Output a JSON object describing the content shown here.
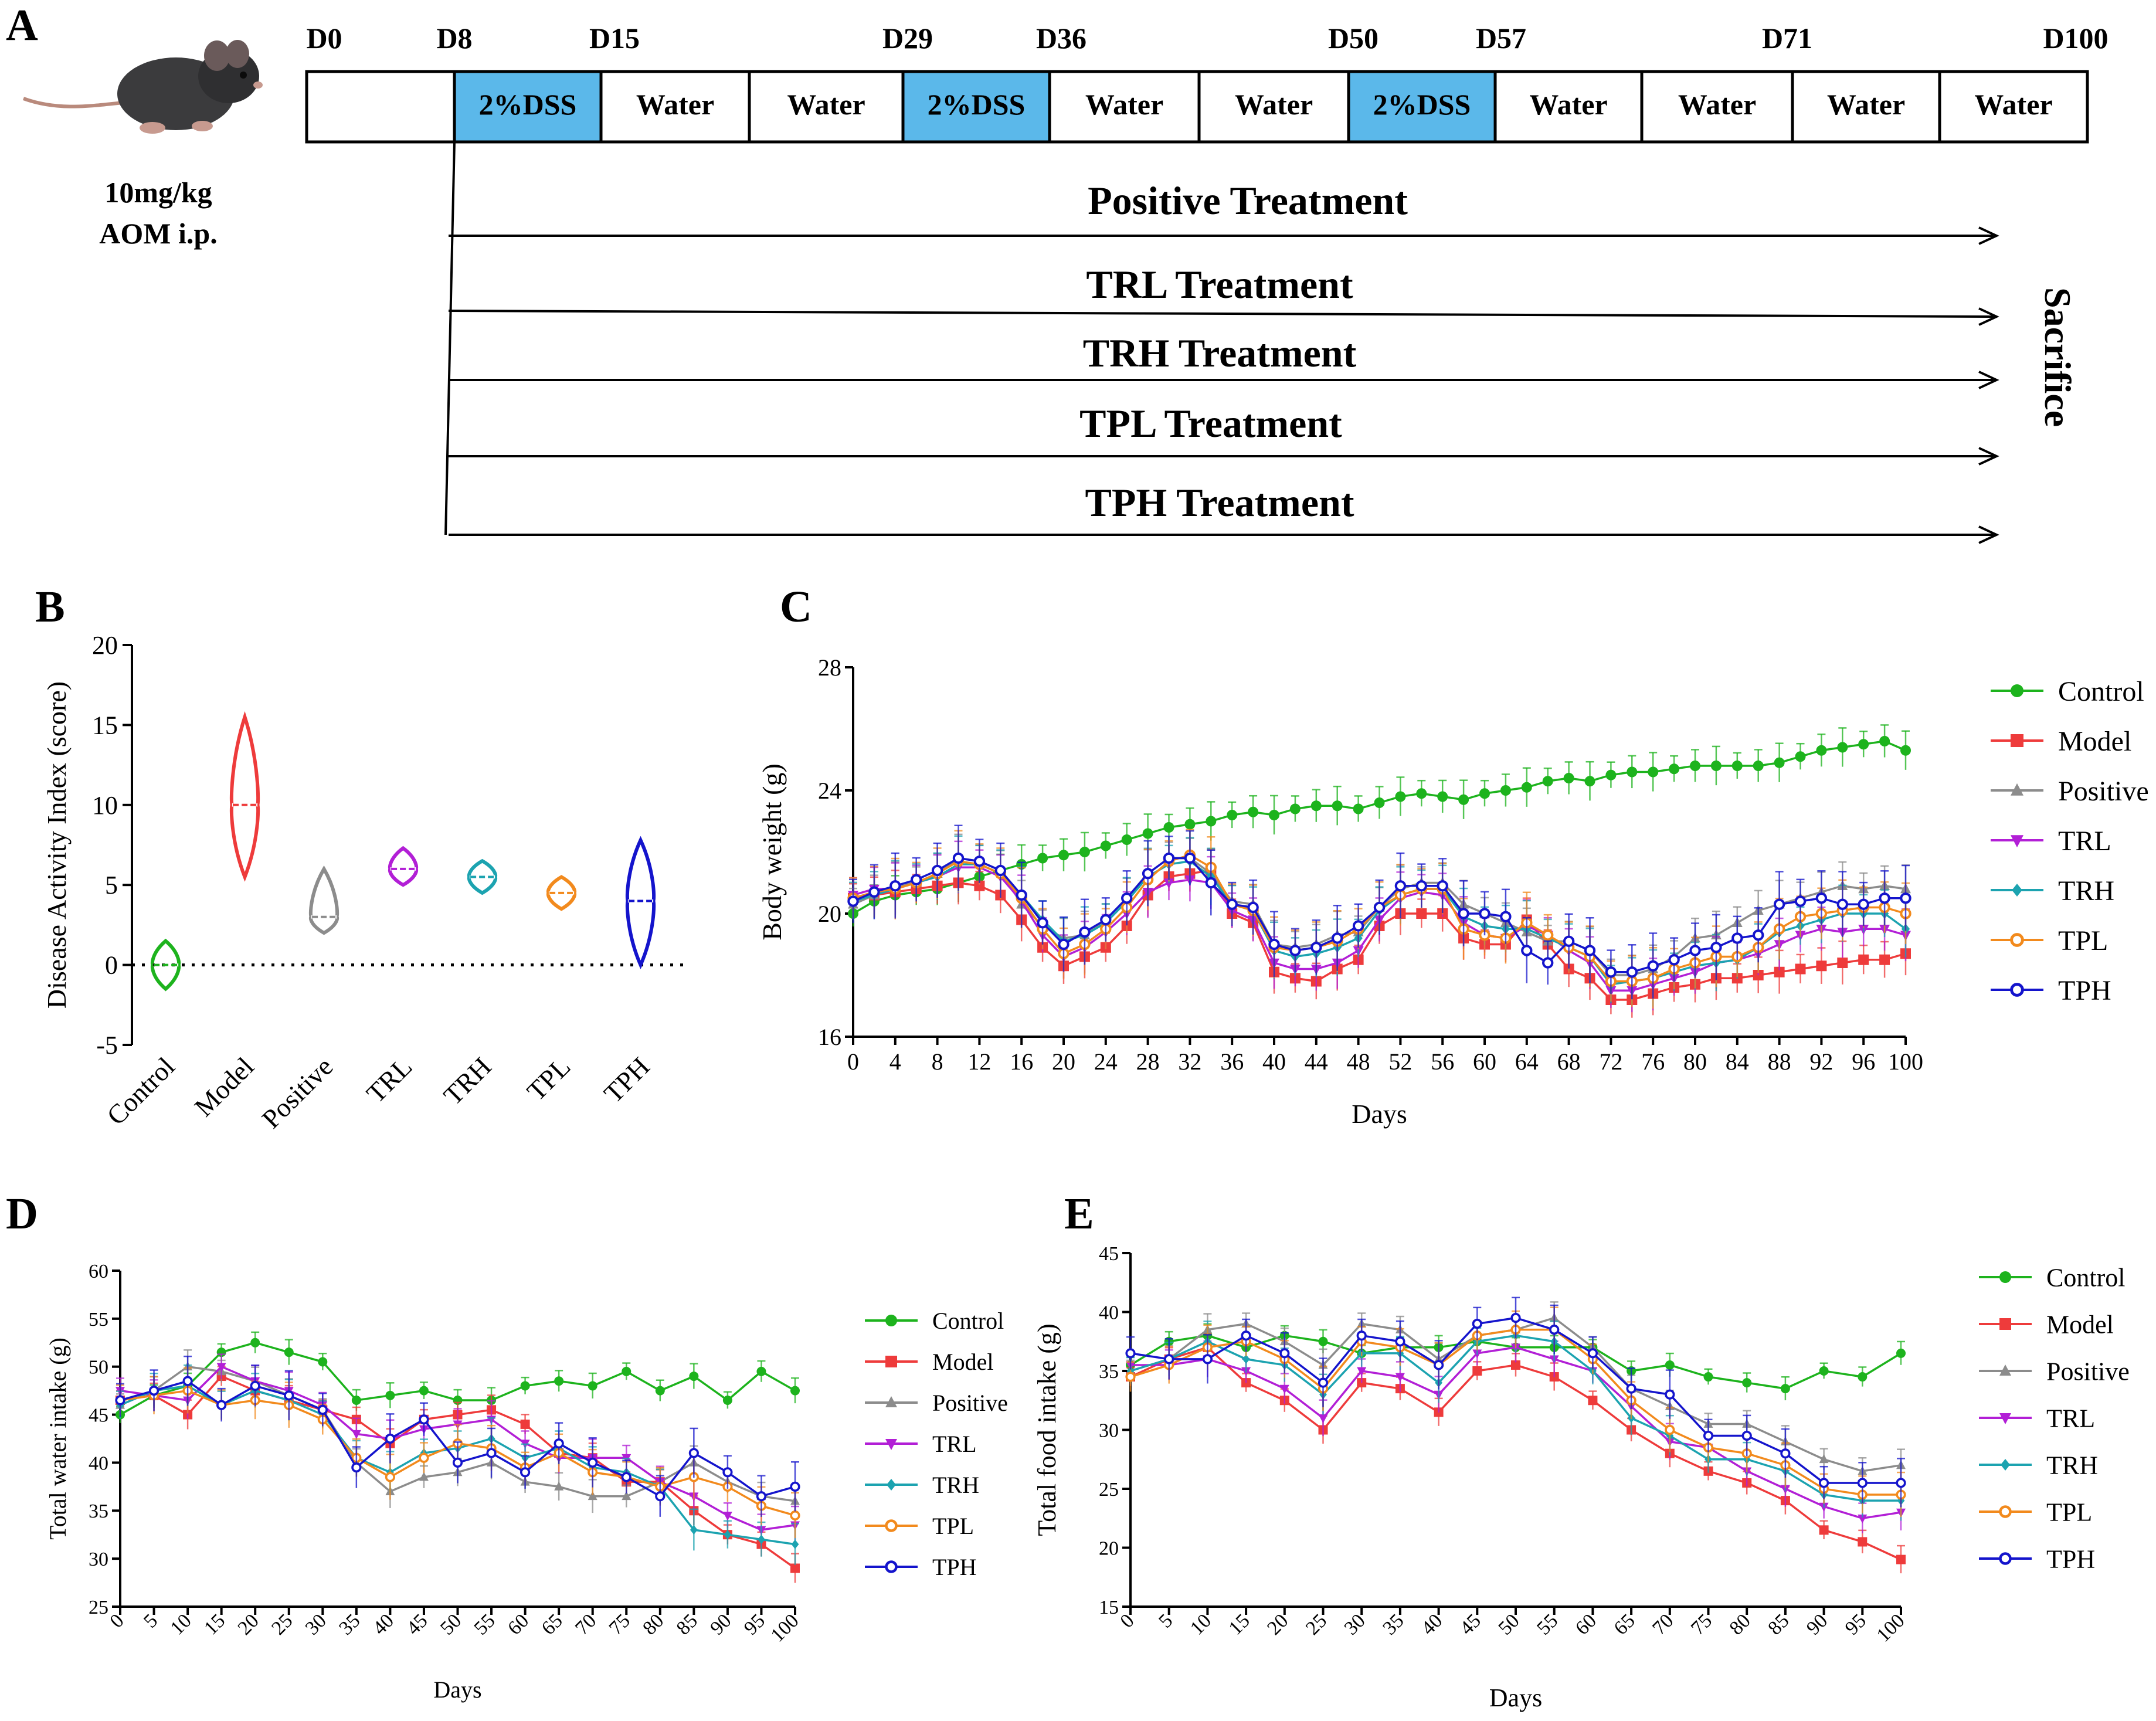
{
  "figure": {
    "panel_labels": [
      "A",
      "B",
      "C",
      "D",
      "E"
    ]
  },
  "panelA": {
    "dose_line1": "10mg/kg",
    "dose_line2": "AOM i.p.",
    "days": [
      "D0",
      "D8",
      "D15",
      "D29",
      "D36",
      "D50",
      "D57",
      "D71",
      "D100"
    ],
    "blocks": [
      "",
      "2%DSS",
      "Water",
      "Water",
      "2%DSS",
      "Water",
      "Water",
      "2%DSS",
      "Water",
      "Water",
      "Water",
      "Water"
    ],
    "dss_color": "#5bb8ea",
    "treatments": [
      "Positive Treatment",
      "TRL Treatment",
      "TRH Treatment",
      "TPL Treatment",
      "TPH Treatment"
    ],
    "end_label": "Sacrifice"
  },
  "colors": {
    "Control": "#1db31d",
    "Model": "#ee3b3b",
    "Positive": "#8c8c8c",
    "TRL": "#b21fd6",
    "TRH": "#1ca3b0",
    "TPL": "#f28a1d",
    "TPH": "#1414cc"
  },
  "chart_data": [
    {
      "id": "B",
      "type": "violin",
      "ylabel": "Disease Activity Index (score)",
      "ylim": [
        -5,
        20
      ],
      "yticks": [
        -5,
        0,
        5,
        10,
        15,
        20
      ],
      "categories": [
        "Control",
        "Model",
        "Positive",
        "TRL",
        "TRH",
        "TPL",
        "TPH"
      ],
      "median": [
        0,
        10,
        3,
        6,
        5.5,
        4.5,
        4
      ],
      "min": [
        -1.5,
        5.5,
        2,
        5,
        4.5,
        3.5,
        0
      ],
      "max": [
        1.5,
        15.5,
        6,
        7.3,
        6.5,
        5.5,
        7.8
      ],
      "reference_line": 0
    },
    {
      "id": "C",
      "type": "line",
      "xlabel": "Days",
      "ylabel": "Body weight (g)",
      "xlim": [
        0,
        100
      ],
      "ylim": [
        16,
        28
      ],
      "xticks": [
        0,
        4,
        8,
        12,
        16,
        20,
        24,
        28,
        32,
        36,
        40,
        44,
        48,
        52,
        56,
        60,
        64,
        68,
        72,
        76,
        80,
        84,
        88,
        92,
        96,
        100
      ],
      "yticks": [
        16,
        20,
        24,
        28
      ],
      "x": [
        0,
        2,
        4,
        6,
        8,
        10,
        12,
        14,
        16,
        18,
        20,
        22,
        24,
        26,
        28,
        30,
        32,
        34,
        36,
        38,
        40,
        42,
        44,
        46,
        48,
        50,
        52,
        54,
        56,
        58,
        60,
        62,
        64,
        66,
        68,
        70,
        72,
        74,
        76,
        78,
        80,
        82,
        84,
        86,
        88,
        90,
        92,
        94,
        96,
        98,
        100
      ],
      "series": [
        {
          "name": "Control",
          "marker": "circle",
          "values": [
            20.0,
            20.4,
            20.6,
            20.7,
            20.8,
            21.0,
            21.2,
            21.4,
            21.6,
            21.8,
            21.9,
            22.0,
            22.2,
            22.4,
            22.6,
            22.8,
            22.9,
            23.0,
            23.2,
            23.3,
            23.2,
            23.4,
            23.5,
            23.5,
            23.4,
            23.6,
            23.8,
            23.9,
            23.8,
            23.7,
            23.9,
            24.0,
            24.1,
            24.3,
            24.4,
            24.3,
            24.5,
            24.6,
            24.6,
            24.7,
            24.8,
            24.8,
            24.8,
            24.8,
            24.9,
            25.1,
            25.3,
            25.4,
            25.5,
            25.6,
            25.3
          ]
        },
        {
          "name": "Model",
          "marker": "square",
          "values": [
            20.5,
            20.6,
            20.7,
            20.8,
            20.9,
            21.0,
            20.9,
            20.6,
            19.8,
            18.9,
            18.3,
            18.6,
            18.9,
            19.6,
            20.6,
            21.2,
            21.3,
            21.4,
            20.0,
            19.7,
            18.1,
            17.9,
            17.8,
            18.2,
            18.5,
            19.6,
            20.0,
            20.0,
            20.0,
            19.2,
            19.0,
            19.0,
            19.8,
            19.0,
            18.2,
            17.9,
            17.2,
            17.2,
            17.4,
            17.6,
            17.7,
            17.9,
            17.9,
            18.0,
            18.1,
            18.2,
            18.3,
            18.4,
            18.5,
            18.5,
            18.7
          ]
        },
        {
          "name": "Positive",
          "marker": "triangle",
          "values": [
            20.3,
            20.6,
            20.9,
            21.0,
            21.3,
            21.8,
            21.7,
            21.4,
            20.3,
            19.6,
            19.2,
            19.3,
            19.8,
            20.5,
            21.3,
            21.8,
            21.8,
            21.3,
            20.4,
            20.3,
            19.0,
            18.9,
            19.0,
            19.3,
            19.4,
            20.2,
            20.8,
            21.0,
            21.0,
            20.3,
            20.0,
            19.7,
            19.4,
            19.1,
            19.1,
            18.8,
            18.0,
            18.0,
            18.2,
            18.6,
            19.2,
            19.3,
            19.7,
            20.1,
            20.3,
            20.5,
            20.7,
            20.9,
            20.8,
            20.9,
            20.8
          ]
        },
        {
          "name": "TRL",
          "marker": "triangle-down",
          "values": [
            20.6,
            20.8,
            20.8,
            21.0,
            21.2,
            21.5,
            21.5,
            21.2,
            20.4,
            19.3,
            18.6,
            18.9,
            19.4,
            20.0,
            20.7,
            21.0,
            21.1,
            21.0,
            20.1,
            19.8,
            18.4,
            18.2,
            18.2,
            18.4,
            18.8,
            19.8,
            20.5,
            20.7,
            20.6,
            19.7,
            19.3,
            19.2,
            19.6,
            19.3,
            18.8,
            18.4,
            17.5,
            17.5,
            17.7,
            17.9,
            18.1,
            18.4,
            18.5,
            18.7,
            19.0,
            19.3,
            19.5,
            19.4,
            19.5,
            19.5,
            19.3
          ]
        },
        {
          "name": "TRH",
          "marker": "diamond",
          "values": [
            20.4,
            20.6,
            20.8,
            21.0,
            21.2,
            21.6,
            21.6,
            21.3,
            20.6,
            19.8,
            19.1,
            19.3,
            19.7,
            20.4,
            21.2,
            21.6,
            21.7,
            21.2,
            20.3,
            20.1,
            18.8,
            18.6,
            18.7,
            18.9,
            19.2,
            20.1,
            20.6,
            20.8,
            20.8,
            19.9,
            19.6,
            19.5,
            19.5,
            19.2,
            18.9,
            18.6,
            17.7,
            17.8,
            17.9,
            18.1,
            18.3,
            18.4,
            18.5,
            18.9,
            19.4,
            19.6,
            19.8,
            20.0,
            20.0,
            20.0,
            19.5
          ]
        },
        {
          "name": "TPL",
          "marker": "circle-open",
          "values": [
            20.5,
            20.7,
            20.8,
            21.0,
            21.3,
            21.7,
            21.6,
            21.3,
            20.5,
            19.5,
            18.7,
            19.0,
            19.5,
            20.2,
            21.1,
            21.7,
            21.9,
            21.5,
            20.3,
            20.1,
            18.9,
            18.8,
            18.9,
            19.1,
            19.5,
            20.2,
            20.6,
            20.8,
            20.8,
            19.5,
            19.3,
            19.2,
            19.7,
            19.3,
            18.9,
            18.6,
            17.8,
            17.8,
            17.9,
            18.2,
            18.4,
            18.6,
            18.6,
            18.9,
            19.5,
            19.9,
            20.0,
            20.1,
            20.2,
            20.2,
            20.0
          ]
        },
        {
          "name": "TPH",
          "marker": "circle-open",
          "values": [
            20.4,
            20.7,
            20.9,
            21.1,
            21.4,
            21.8,
            21.7,
            21.4,
            20.6,
            19.7,
            19.0,
            19.4,
            19.8,
            20.5,
            21.3,
            21.8,
            21.8,
            21.0,
            20.3,
            20.2,
            19.0,
            18.8,
            18.9,
            19.2,
            19.6,
            20.2,
            20.9,
            20.9,
            20.9,
            20.0,
            20.0,
            19.9,
            18.8,
            18.4,
            19.1,
            18.8,
            18.1,
            18.1,
            18.3,
            18.5,
            18.8,
            18.9,
            19.2,
            19.3,
            20.3,
            20.4,
            20.5,
            20.3,
            20.3,
            20.5,
            20.5
          ]
        }
      ]
    },
    {
      "id": "D",
      "type": "line",
      "xlabel": "Days",
      "ylabel": "Total water intake (g)",
      "xlim": [
        0,
        100
      ],
      "ylim": [
        25,
        60
      ],
      "xticks": [
        0,
        5,
        10,
        15,
        20,
        25,
        30,
        35,
        40,
        45,
        50,
        55,
        60,
        65,
        70,
        75,
        80,
        85,
        90,
        95,
        100
      ],
      "yticks": [
        25,
        30,
        35,
        40,
        45,
        50,
        55,
        60
      ],
      "x": [
        0,
        5,
        10,
        15,
        20,
        25,
        30,
        35,
        40,
        45,
        50,
        55,
        60,
        65,
        70,
        75,
        80,
        85,
        90,
        95,
        100
      ],
      "series": [
        {
          "name": "Control",
          "marker": "circle",
          "values": [
            45.0,
            47.0,
            48.0,
            51.5,
            52.5,
            51.5,
            50.5,
            46.5,
            47.0,
            47.5,
            46.5,
            46.5,
            48.0,
            48.5,
            48.0,
            49.5,
            47.5,
            49.0,
            46.5,
            49.5,
            47.5
          ]
        },
        {
          "name": "Model",
          "marker": "square",
          "values": [
            46.5,
            47.0,
            45.0,
            49.0,
            47.5,
            46.5,
            45.5,
            44.5,
            42.0,
            44.5,
            45.0,
            45.5,
            44.0,
            41.0,
            40.5,
            38.0,
            38.0,
            35.0,
            32.5,
            31.5,
            29.0
          ]
        },
        {
          "name": "Positive",
          "marker": "triangle",
          "values": [
            46.0,
            47.5,
            50.0,
            49.5,
            48.5,
            47.0,
            45.5,
            40.0,
            37.0,
            38.5,
            39.0,
            40.0,
            38.0,
            37.5,
            36.5,
            36.5,
            38.0,
            40.0,
            38.0,
            36.5,
            36.0
          ]
        },
        {
          "name": "TRL",
          "marker": "triangle-down",
          "values": [
            47.5,
            47.0,
            46.5,
            50.0,
            48.5,
            47.5,
            46.0,
            43.0,
            42.5,
            43.5,
            44.0,
            44.5,
            42.0,
            40.5,
            40.5,
            40.5,
            38.0,
            36.5,
            34.5,
            33.0,
            33.5
          ]
        },
        {
          "name": "TRH",
          "marker": "diamond",
          "values": [
            46.0,
            47.5,
            48.0,
            46.0,
            47.5,
            46.5,
            45.0,
            40.5,
            39.0,
            41.0,
            41.5,
            42.5,
            40.5,
            41.5,
            39.5,
            39.0,
            37.5,
            33.0,
            32.5,
            32.0,
            31.5
          ]
        },
        {
          "name": "TPL",
          "marker": "circle-open",
          "values": [
            46.5,
            47.0,
            47.5,
            46.0,
            46.5,
            46.0,
            44.5,
            40.5,
            38.5,
            40.5,
            42.0,
            41.5,
            39.5,
            41.0,
            39.0,
            38.5,
            37.5,
            38.5,
            37.5,
            35.5,
            34.5
          ]
        },
        {
          "name": "TPH",
          "marker": "circle-open",
          "values": [
            46.5,
            47.5,
            48.5,
            46.0,
            48.0,
            47.0,
            45.5,
            39.5,
            42.5,
            44.5,
            40.0,
            41.0,
            39.0,
            42.0,
            40.0,
            38.5,
            36.5,
            41.0,
            39.0,
            36.5,
            37.5
          ]
        }
      ]
    },
    {
      "id": "E",
      "type": "line",
      "xlabel": "Days",
      "ylabel": "Total food intake (g)",
      "xlim": [
        0,
        100
      ],
      "ylim": [
        15,
        45
      ],
      "xticks": [
        0,
        5,
        10,
        15,
        20,
        25,
        30,
        35,
        40,
        45,
        50,
        55,
        60,
        65,
        70,
        75,
        80,
        85,
        90,
        95,
        100
      ],
      "yticks": [
        15,
        20,
        25,
        30,
        35,
        40,
        45
      ],
      "x": [
        0,
        5,
        10,
        15,
        20,
        25,
        30,
        35,
        40,
        45,
        50,
        55,
        60,
        65,
        70,
        75,
        80,
        85,
        90,
        95,
        100
      ],
      "series": [
        {
          "name": "Control",
          "marker": "circle",
          "values": [
            35.5,
            37.5,
            38.0,
            37.0,
            38.0,
            37.5,
            36.5,
            37.0,
            37.0,
            37.5,
            37.0,
            37.0,
            37.0,
            35.0,
            35.5,
            34.5,
            34.0,
            33.5,
            35.0,
            34.5,
            36.5
          ]
        },
        {
          "name": "Model",
          "marker": "square",
          "values": [
            34.5,
            36.0,
            37.0,
            34.0,
            32.5,
            30.0,
            34.0,
            33.5,
            31.5,
            35.0,
            35.5,
            34.5,
            32.5,
            30.0,
            28.0,
            26.5,
            25.5,
            24.0,
            21.5,
            20.5,
            19.0
          ]
        },
        {
          "name": "Positive",
          "marker": "triangle",
          "values": [
            35.0,
            36.0,
            38.5,
            39.0,
            37.5,
            35.5,
            39.0,
            38.5,
            36.0,
            38.0,
            38.5,
            39.5,
            37.0,
            33.5,
            32.0,
            30.5,
            30.5,
            29.0,
            27.5,
            26.5,
            27.0
          ]
        },
        {
          "name": "TRL",
          "marker": "triangle-down",
          "values": [
            35.5,
            35.5,
            36.0,
            35.0,
            33.5,
            31.0,
            35.0,
            34.5,
            33.0,
            36.5,
            37.0,
            36.0,
            35.0,
            32.0,
            29.0,
            28.5,
            26.5,
            25.0,
            23.5,
            22.5,
            23.0
          ]
        },
        {
          "name": "TRH",
          "marker": "diamond",
          "values": [
            35.0,
            36.0,
            37.5,
            36.0,
            35.5,
            33.0,
            36.5,
            36.5,
            34.0,
            37.5,
            38.0,
            37.5,
            35.0,
            31.0,
            29.5,
            27.5,
            27.5,
            26.5,
            24.5,
            24.0,
            24.0
          ]
        },
        {
          "name": "TPL",
          "marker": "circle-open",
          "values": [
            34.5,
            35.5,
            37.0,
            37.5,
            36.0,
            33.5,
            37.5,
            37.0,
            35.5,
            38.0,
            38.5,
            38.5,
            36.0,
            32.5,
            30.0,
            28.5,
            28.0,
            27.0,
            25.0,
            24.5,
            24.5
          ]
        },
        {
          "name": "TPH",
          "marker": "circle-open",
          "values": [
            36.5,
            36.0,
            36.0,
            38.0,
            36.5,
            34.0,
            38.0,
            37.5,
            35.5,
            39.0,
            39.5,
            38.5,
            36.5,
            33.5,
            33.0,
            29.5,
            29.5,
            28.0,
            25.5,
            25.5,
            25.5
          ]
        }
      ]
    }
  ]
}
